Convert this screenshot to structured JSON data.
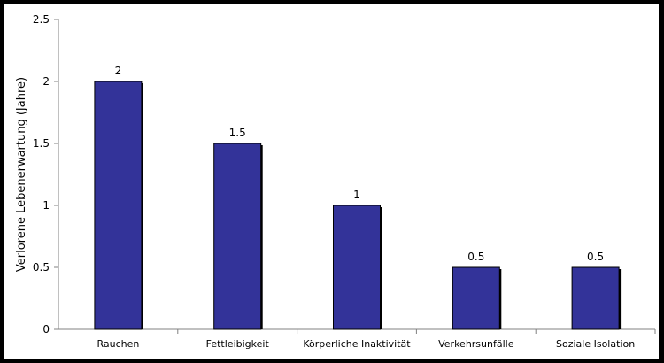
{
  "chart_data": {
    "type": "bar",
    "categories": [
      "Rauchen",
      "Fettleibigkeit",
      "Körperliche Inaktivität",
      "Verkehrsunfälle",
      "Soziale Isolation"
    ],
    "values": [
      2,
      1.5,
      1,
      0.5,
      0.5
    ],
    "value_labels": [
      "2",
      "1.5",
      "1",
      "0.5",
      "0.5"
    ],
    "title": "",
    "xlabel": "",
    "ylabel": "Verlorene Lebenerwartung (Jahre)",
    "ylim": [
      0,
      2.5
    ],
    "yticks": [
      0,
      0.5,
      1,
      1.5,
      2,
      2.5
    ],
    "ytick_labels": [
      "0",
      "0.5",
      "1",
      "1.5",
      "2",
      "2.5"
    ],
    "grid": false,
    "legend": "none",
    "colors": {
      "bar": "#333399",
      "bar_shadow": "#000000",
      "axis": "#808080"
    }
  }
}
